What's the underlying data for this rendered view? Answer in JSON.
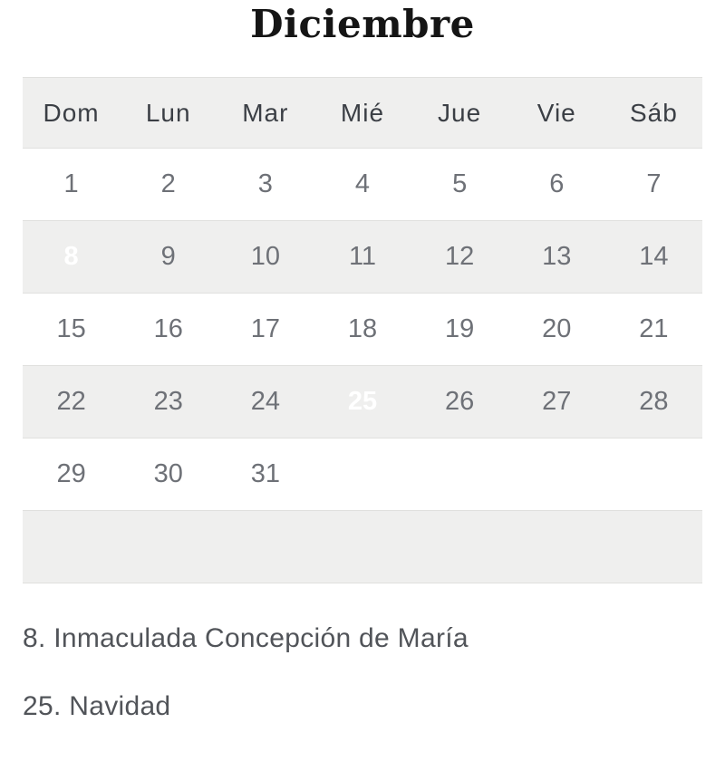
{
  "page": {
    "title": "Diciembre"
  },
  "calendar": {
    "weekdays": [
      "Dom",
      "Lun",
      "Mar",
      "Mié",
      "Jue",
      "Vie",
      "Sáb"
    ],
    "weeks": [
      [
        "1",
        "2",
        "3",
        "4",
        "5",
        "6",
        "7"
      ],
      [
        "8",
        "9",
        "10",
        "11",
        "12",
        "13",
        "14"
      ],
      [
        "15",
        "16",
        "17",
        "18",
        "19",
        "20",
        "21"
      ],
      [
        "22",
        "23",
        "24",
        "25",
        "26",
        "27",
        "28"
      ],
      [
        "29",
        "30",
        "31",
        "",
        "",
        "",
        ""
      ],
      [
        "",
        "",
        "",
        "",
        "",
        "",
        ""
      ]
    ],
    "highlighted_days": [
      "8",
      "25"
    ]
  },
  "legend": {
    "items": [
      "8. Inmaculada Concepción de María",
      "25. Navidad"
    ]
  },
  "colors": {
    "highlight_navy": "#263157",
    "stripe_gray": "#efefee",
    "hairline": "#e0e0de",
    "day_number": "#6e7177",
    "weekday_header": "#3b3f45",
    "legend_text": "#515459",
    "title_black": "#151515",
    "highlight_text": "#ffffff"
  }
}
